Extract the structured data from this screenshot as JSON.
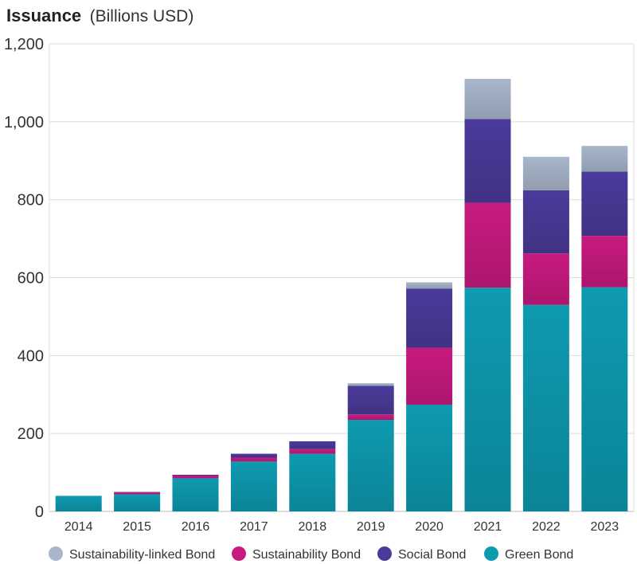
{
  "chart_data": {
    "type": "bar",
    "stacked": true,
    "title": "Issuance",
    "subtitle": "(Billions USD)",
    "xlabel": "",
    "ylabel": "",
    "ylim": [
      0,
      1200
    ],
    "yticks": [
      0,
      200,
      400,
      600,
      800,
      1000,
      1200
    ],
    "ytick_labels": [
      "0",
      "200",
      "400",
      "600",
      "800",
      "1,000",
      "1,200"
    ],
    "categories": [
      "2014",
      "2015",
      "2016",
      "2017",
      "2018",
      "2019",
      "2020",
      "2021",
      "2022",
      "2023"
    ],
    "series": [
      {
        "name": "Green Bond",
        "color": "#0E9AB0",
        "values": [
          40,
          44,
          85,
          128,
          148,
          235,
          274,
          574,
          530,
          575
        ]
      },
      {
        "name": "Sustainability Bond",
        "color": "#C81A80",
        "values": [
          0,
          5,
          7,
          10,
          12,
          14,
          146,
          218,
          132,
          132
        ]
      },
      {
        "name": "Social Bond",
        "color": "#4B3A9A",
        "values": [
          0,
          1,
          2,
          10,
          20,
          73,
          152,
          215,
          162,
          165
        ]
      },
      {
        "name": "Sustainability-linked Bond",
        "color": "#A8B6CB",
        "values": [
          0,
          0,
          0,
          0,
          0,
          7,
          16,
          103,
          86,
          66
        ]
      }
    ],
    "legend": {
      "position": "bottom",
      "order": [
        "Sustainability-linked Bond",
        "Sustainability Bond",
        "Social Bond",
        "Green Bond"
      ]
    },
    "grid": true
  }
}
